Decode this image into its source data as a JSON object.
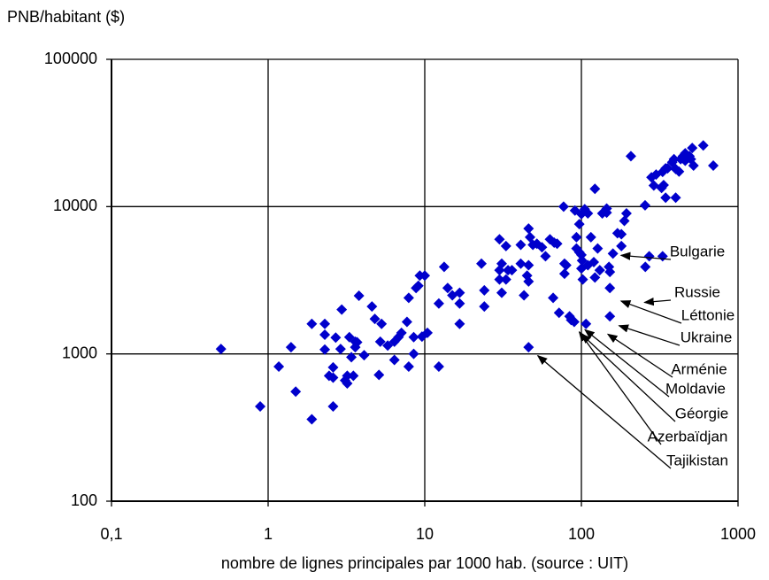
{
  "chart_data": {
    "type": "scatter",
    "y_label": "PNB/habitant ($)",
    "x_label": "nombre de lignes principales par 1000 hab. (source : UIT)",
    "xscale": "log",
    "yscale": "log",
    "grid": true,
    "xlim": [
      0.1,
      1000
    ],
    "ylim": [
      100,
      100000
    ],
    "xticks": [
      {
        "value": 0.1,
        "label": "0,1"
      },
      1,
      10,
      100,
      1000
    ],
    "yticks": [
      100,
      1000,
      10000,
      100000
    ],
    "color": "#0000cc",
    "x": [
      0.5,
      0.89,
      1.17,
      1.4,
      1.5,
      1.9,
      1.9,
      2.3,
      2.3,
      2.3,
      2.45,
      2.6,
      2.6,
      2.6,
      2.7,
      2.9,
      2.95,
      3.1,
      3.2,
      3.2,
      3.3,
      3.4,
      3.5,
      3.6,
      3.6,
      3.7,
      3.8,
      4.1,
      4.6,
      4.8,
      5.1,
      5.3,
      5.2,
      5.8,
      6.4,
      6.4,
      6.8,
      7.1,
      7.7,
      7.9,
      7.9,
      8.5,
      8.5,
      8.8,
      9.1,
      9.3,
      9.6,
      10,
      10.4,
      12.3,
      12.3,
      13.3,
      14,
      15,
      16.7,
      16.7,
      16.7,
      23,
      24,
      24,
      30,
      30,
      30,
      31,
      31,
      33,
      33,
      34,
      36,
      41,
      41,
      43,
      45,
      46,
      46,
      46,
      46,
      47,
      49,
      52,
      56,
      59,
      63,
      66,
      67,
      70,
      72,
      77,
      78,
      78,
      80,
      84,
      86,
      90,
      91,
      93,
      93,
      97,
      97,
      100,
      100,
      100,
      101,
      102,
      105,
      107,
      110,
      110,
      115,
      120,
      122,
      122,
      127,
      131,
      136,
      145,
      145,
      150,
      152,
      152,
      152,
      159,
      170,
      180,
      180,
      188,
      194,
      207,
      255,
      256,
      271,
      280,
      290,
      300,
      325,
      330,
      335,
      345,
      345,
      355,
      380,
      390,
      400,
      420,
      430,
      445,
      460,
      460,
      490,
      500,
      510,
      520,
      695,
      600,
      400,
      330
    ],
    "values": [
      1080,
      440,
      820,
      1110,
      555,
      1600,
      360,
      1600,
      1350,
      1070,
      710,
      810,
      440,
      690,
      1290,
      1080,
      2000,
      660,
      630,
      710,
      1300,
      950,
      710,
      1110,
      1210,
      1200,
      2480,
      980,
      2100,
      1730,
      720,
      1600,
      1210,
      1140,
      1210,
      910,
      1300,
      1390,
      1650,
      820,
      2400,
      1000,
      1300,
      2800,
      2900,
      3400,
      1310,
      3400,
      1390,
      820,
      2200,
      3900,
      2800,
      2500,
      2200,
      2600,
      1600,
      4100,
      2700,
      2100,
      6000,
      3700,
      3200,
      2600,
      4100,
      5400,
      3200,
      3700,
      3700,
      4100,
      5500,
      2500,
      3400,
      1110,
      3100,
      4000,
      7100,
      6200,
      5500,
      5600,
      5300,
      4600,
      6000,
      2400,
      5700,
      5600,
      1900,
      10000,
      4100,
      3500,
      4000,
      1800,
      1700,
      1650,
      9400,
      6200,
      5200,
      7600,
      4900,
      4700,
      3800,
      8900,
      4300,
      3200,
      9600,
      1600,
      4000,
      9000,
      6200,
      4200,
      3300,
      13200,
      5200,
      3700,
      9000,
      9100,
      9700,
      3900,
      3600,
      1800,
      2800,
      4800,
      6600,
      6500,
      5400,
      8000,
      9000,
      22000,
      10200,
      3900,
      4600,
      15800,
      13900,
      16500,
      13400,
      17200,
      14000,
      11500,
      18200,
      18200,
      20000,
      21000,
      18000,
      17300,
      21000,
      22000,
      23000,
      20500,
      22000,
      21000,
      25000,
      19000,
      19000,
      26000,
      11500,
      4600
    ],
    "annotations": [
      {
        "text": "Bulgarie",
        "x": 170,
        "y": 4800
      },
      {
        "text": "Russie",
        "x": 240,
        "y": 2300
      },
      {
        "text": "Léttonie",
        "x": 170,
        "y": 2350
      },
      {
        "text": "Ukraine",
        "x": 165,
        "y": 1600
      },
      {
        "text": "Arménie",
        "x": 140,
        "y": 1400
      },
      {
        "text": "Moldavie",
        "x": 100,
        "y": 1500
      },
      {
        "text": "Géorgie",
        "x": 95,
        "y": 1400
      },
      {
        "text": "Azerbaïdjan",
        "x": 92,
        "y": 1450
      },
      {
        "text": "Tajikistan",
        "x": 50,
        "y": 1000
      }
    ]
  }
}
